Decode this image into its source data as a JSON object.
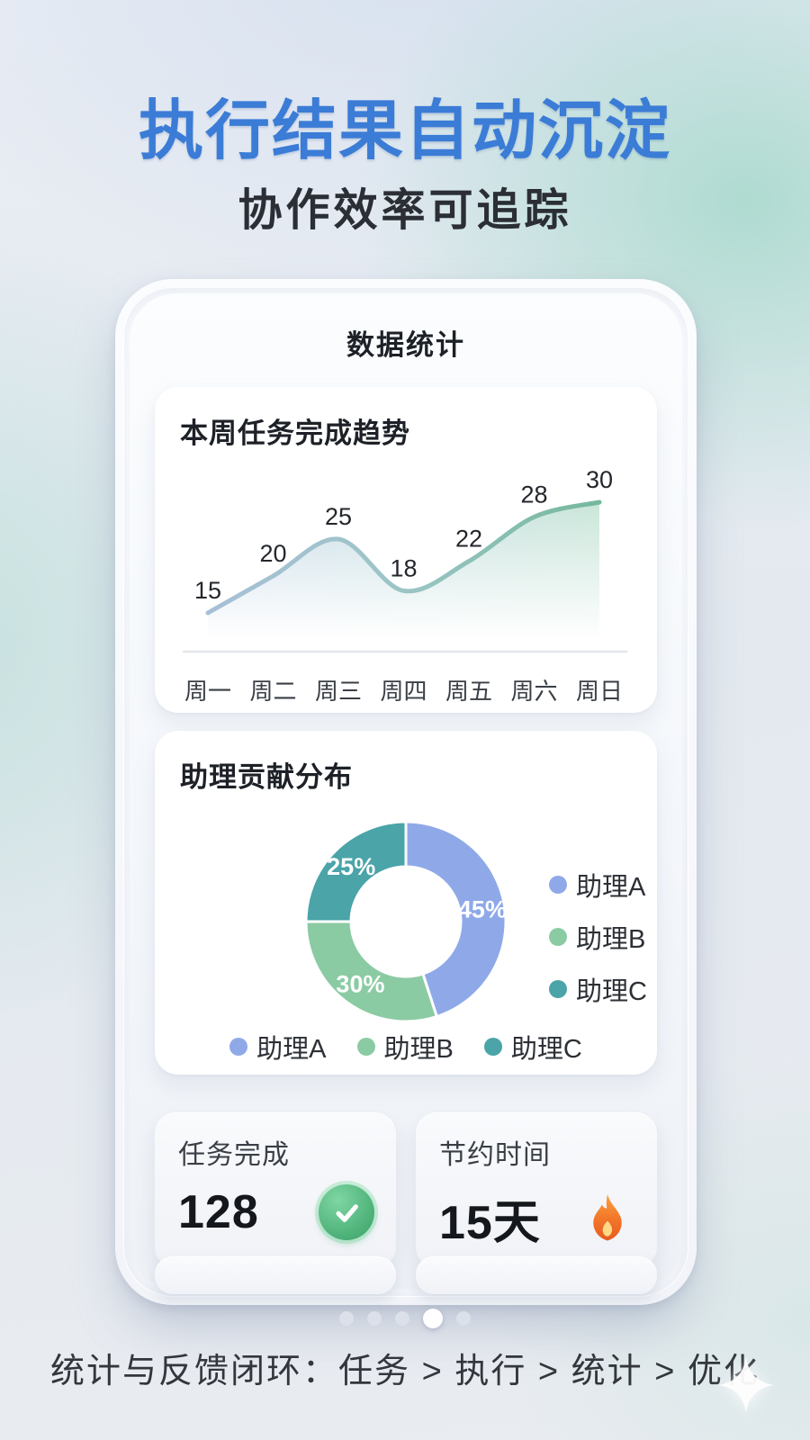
{
  "hero": {
    "title": "执行结果自动沉淀",
    "subtitle": "协作效率可追踪"
  },
  "phone": {
    "header": "数据统计"
  },
  "chart_data": [
    {
      "type": "line",
      "title": "本周任务完成趋势",
      "categories": [
        "周一",
        "周二",
        "周三",
        "周四",
        "周五",
        "周六",
        "周日"
      ],
      "values": [
        15,
        20,
        25,
        18,
        22,
        28,
        30
      ],
      "point_labels": true,
      "ylim": [
        15,
        30
      ],
      "grid": false,
      "legend_position": "none",
      "line_gradient": [
        "#a8bfd7",
        "#9cc5c6",
        "#74b89c"
      ],
      "area_gradient": [
        "rgba(168,195,226,0.55)",
        "rgba(158,209,186,0.55)"
      ],
      "axis_color": "#e3e6ea"
    },
    {
      "type": "pie",
      "title": "助理贡献分布",
      "labels": [
        "助理A",
        "助理B",
        "助理C"
      ],
      "values": [
        45,
        30,
        25
      ],
      "unit": "%",
      "donut": true,
      "colors": [
        "#8fa9e8",
        "#8bcba3",
        "#4aa4a8"
      ],
      "slice_labels": [
        "45%",
        "30%",
        "25%"
      ],
      "legend_position": "right-and-bottom"
    }
  ],
  "stats": [
    {
      "label": "任务完成",
      "value": "128",
      "icon": "check-circle",
      "icon_color": "#4cb077"
    },
    {
      "label": "节约时间",
      "value": "15天",
      "icon": "flame",
      "icon_color": "#ef7a2e"
    }
  ],
  "pagination": {
    "count": 5,
    "active_index": 3
  },
  "footer": {
    "caption": "统计与反馈闭环：任务 > 执行 > 统计 > 优化"
  },
  "colors": {
    "accent_blue": "#3b7cd6",
    "text_dark": "#1d2127",
    "check_green": "#4cb077",
    "flame_orange": "#ef7a2e",
    "dot_inactive": "#dbe0e9",
    "dot_active": "#ffffff"
  }
}
